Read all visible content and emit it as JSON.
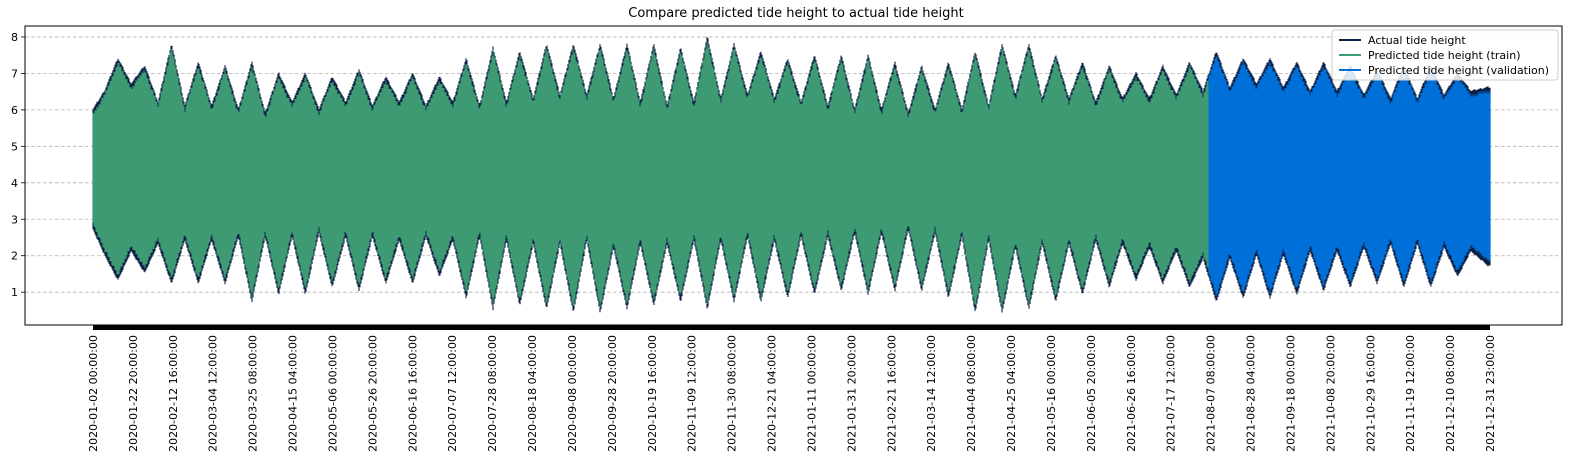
{
  "chart_data": {
    "type": "line",
    "title": "Compare predicted tide height to actual tide height",
    "xlabel": "",
    "ylabel": "",
    "x_range": [
      "2020-01-02 00:00:00",
      "2021-12-31 23:00:00"
    ],
    "split_date": "2021-08-07 08:00:00",
    "ylim": [
      0.1,
      8.3
    ],
    "y_ticks": [
      1,
      2,
      3,
      4,
      5,
      6,
      7,
      8
    ],
    "x_tick_labels": [
      "2020-01-02 00:00:00",
      "2020-01-22 20:00:00",
      "2020-02-12 16:00:00",
      "2020-03-04 12:00:00",
      "2020-03-25 08:00:00",
      "2020-04-15 04:00:00",
      "2020-05-06 00:00:00",
      "2020-05-26 20:00:00",
      "2020-06-16 16:00:00",
      "2020-07-07 12:00:00",
      "2020-07-28 08:00:00",
      "2020-08-18 04:00:00",
      "2020-09-08 00:00:00",
      "2020-09-28 20:00:00",
      "2020-10-19 16:00:00",
      "2020-11-09 12:00:00",
      "2020-11-30 08:00:00",
      "2020-12-21 04:00:00",
      "2021-01-11 00:00:00",
      "2021-01-31 20:00:00",
      "2021-02-21 16:00:00",
      "2021-03-14 12:00:00",
      "2021-04-04 08:00:00",
      "2021-04-25 04:00:00",
      "2021-05-16 00:00:00",
      "2021-06-05 20:00:00",
      "2021-06-26 16:00:00",
      "2021-07-17 12:00:00",
      "2021-08-07 08:00:00",
      "2021-08-28 04:00:00",
      "2021-09-18 00:00:00",
      "2021-10-08 20:00:00",
      "2021-10-29 16:00:00",
      "2021-11-19 12:00:00",
      "2021-12-10 08:00:00",
      "2021-12-31 23:00:00"
    ],
    "grid": "y-dashed",
    "legend_position": "top-right",
    "envelope_note_fields": [
      "date",
      "min",
      "max"
    ],
    "series": [
      {
        "name": "Actual tide height",
        "color": "#0b1f44",
        "envelope": [
          {
            "date": "2020-01-02",
            "min": 2.8,
            "max": 6.0
          },
          {
            "date": "2020-01-08",
            "min": 2.1,
            "max": 6.5
          },
          {
            "date": "2020-01-15",
            "min": 1.4,
            "max": 7.4
          },
          {
            "date": "2020-01-22",
            "min": 2.2,
            "max": 6.7
          },
          {
            "date": "2020-01-29",
            "min": 1.6,
            "max": 7.2
          },
          {
            "date": "2020-02-05",
            "min": 2.4,
            "max": 6.2
          },
          {
            "date": "2020-02-12",
            "min": 1.3,
            "max": 7.8
          },
          {
            "date": "2020-02-19",
            "min": 2.5,
            "max": 6.1
          },
          {
            "date": "2020-02-26",
            "min": 1.3,
            "max": 7.3
          },
          {
            "date": "2020-03-04",
            "min": 2.5,
            "max": 6.1
          },
          {
            "date": "2020-03-11",
            "min": 1.3,
            "max": 7.2
          },
          {
            "date": "2020-03-18",
            "min": 2.6,
            "max": 6.0
          },
          {
            "date": "2020-03-25",
            "min": 0.8,
            "max": 7.3
          },
          {
            "date": "2020-04-01",
            "min": 2.6,
            "max": 5.9
          },
          {
            "date": "2020-04-08",
            "min": 1.0,
            "max": 7.0
          },
          {
            "date": "2020-04-15",
            "min": 2.6,
            "max": 6.2
          },
          {
            "date": "2020-04-22",
            "min": 1.0,
            "max": 7.0
          },
          {
            "date": "2020-04-29",
            "min": 2.7,
            "max": 6.0
          },
          {
            "date": "2020-05-06",
            "min": 1.2,
            "max": 6.9
          },
          {
            "date": "2020-05-13",
            "min": 2.6,
            "max": 6.2
          },
          {
            "date": "2020-05-20",
            "min": 1.1,
            "max": 7.1
          },
          {
            "date": "2020-05-27",
            "min": 2.6,
            "max": 6.1
          },
          {
            "date": "2020-06-03",
            "min": 1.3,
            "max": 6.9
          },
          {
            "date": "2020-06-10",
            "min": 2.5,
            "max": 6.2
          },
          {
            "date": "2020-06-17",
            "min": 1.3,
            "max": 7.0
          },
          {
            "date": "2020-06-24",
            "min": 2.6,
            "max": 6.1
          },
          {
            "date": "2020-07-01",
            "min": 1.5,
            "max": 6.9
          },
          {
            "date": "2020-07-08",
            "min": 2.5,
            "max": 6.2
          },
          {
            "date": "2020-07-15",
            "min": 0.9,
            "max": 7.4
          },
          {
            "date": "2020-07-22",
            "min": 2.6,
            "max": 6.1
          },
          {
            "date": "2020-07-29",
            "min": 0.6,
            "max": 7.7
          },
          {
            "date": "2020-08-05",
            "min": 2.5,
            "max": 6.2
          },
          {
            "date": "2020-08-12",
            "min": 0.7,
            "max": 7.6
          },
          {
            "date": "2020-08-19",
            "min": 2.4,
            "max": 6.3
          },
          {
            "date": "2020-08-26",
            "min": 0.6,
            "max": 7.8
          },
          {
            "date": "2020-09-02",
            "min": 2.4,
            "max": 6.4
          },
          {
            "date": "2020-09-09",
            "min": 0.5,
            "max": 7.8
          },
          {
            "date": "2020-09-16",
            "min": 2.5,
            "max": 6.4
          },
          {
            "date": "2020-09-23",
            "min": 0.5,
            "max": 7.8
          },
          {
            "date": "2020-09-30",
            "min": 2.3,
            "max": 6.3
          },
          {
            "date": "2020-10-07",
            "min": 0.6,
            "max": 7.8
          },
          {
            "date": "2020-10-14",
            "min": 2.4,
            "max": 6.2
          },
          {
            "date": "2020-10-21",
            "min": 0.7,
            "max": 7.8
          },
          {
            "date": "2020-10-28",
            "min": 2.4,
            "max": 6.1
          },
          {
            "date": "2020-11-04",
            "min": 0.8,
            "max": 7.7
          },
          {
            "date": "2020-11-11",
            "min": 2.5,
            "max": 6.2
          },
          {
            "date": "2020-11-18",
            "min": 0.6,
            "max": 8.0
          },
          {
            "date": "2020-11-25",
            "min": 2.5,
            "max": 6.3
          },
          {
            "date": "2020-12-02",
            "min": 0.8,
            "max": 7.8
          },
          {
            "date": "2020-12-09",
            "min": 2.6,
            "max": 6.4
          },
          {
            "date": "2020-12-16",
            "min": 0.8,
            "max": 7.6
          },
          {
            "date": "2020-12-23",
            "min": 2.5,
            "max": 6.3
          },
          {
            "date": "2020-12-30",
            "min": 0.9,
            "max": 7.4
          },
          {
            "date": "2021-01-06",
            "min": 2.6,
            "max": 6.2
          },
          {
            "date": "2021-01-13",
            "min": 1.0,
            "max": 7.5
          },
          {
            "date": "2021-01-20",
            "min": 2.6,
            "max": 6.1
          },
          {
            "date": "2021-01-27",
            "min": 1.1,
            "max": 7.5
          },
          {
            "date": "2021-02-03",
            "min": 2.7,
            "max": 6.0
          },
          {
            "date": "2021-02-10",
            "min": 1.0,
            "max": 7.5
          },
          {
            "date": "2021-02-17",
            "min": 2.7,
            "max": 6.0
          },
          {
            "date": "2021-02-24",
            "min": 1.1,
            "max": 7.3
          },
          {
            "date": "2021-03-03",
            "min": 2.8,
            "max": 5.9
          },
          {
            "date": "2021-03-10",
            "min": 1.1,
            "max": 7.2
          },
          {
            "date": "2021-03-17",
            "min": 2.7,
            "max": 6.0
          },
          {
            "date": "2021-03-24",
            "min": 0.9,
            "max": 7.3
          },
          {
            "date": "2021-03-31",
            "min": 2.6,
            "max": 6.0
          },
          {
            "date": "2021-04-07",
            "min": 0.5,
            "max": 7.6
          },
          {
            "date": "2021-04-14",
            "min": 2.5,
            "max": 6.1
          },
          {
            "date": "2021-04-21",
            "min": 0.5,
            "max": 7.8
          },
          {
            "date": "2021-04-28",
            "min": 2.3,
            "max": 6.4
          },
          {
            "date": "2021-05-05",
            "min": 0.6,
            "max": 7.8
          },
          {
            "date": "2021-05-12",
            "min": 2.4,
            "max": 6.3
          },
          {
            "date": "2021-05-19",
            "min": 0.8,
            "max": 7.5
          },
          {
            "date": "2021-05-26",
            "min": 2.4,
            "max": 6.3
          },
          {
            "date": "2021-06-02",
            "min": 1.0,
            "max": 7.3
          },
          {
            "date": "2021-06-09",
            "min": 2.5,
            "max": 6.2
          },
          {
            "date": "2021-06-16",
            "min": 1.2,
            "max": 7.2
          },
          {
            "date": "2021-06-23",
            "min": 2.4,
            "max": 6.3
          },
          {
            "date": "2021-06-30",
            "min": 1.4,
            "max": 7.0
          },
          {
            "date": "2021-07-07",
            "min": 2.3,
            "max": 6.3
          },
          {
            "date": "2021-07-14",
            "min": 1.3,
            "max": 7.2
          },
          {
            "date": "2021-07-21",
            "min": 2.2,
            "max": 6.4
          },
          {
            "date": "2021-07-28",
            "min": 1.2,
            "max": 7.3
          },
          {
            "date": "2021-08-04",
            "min": 2.0,
            "max": 6.5
          },
          {
            "date": "2021-08-11",
            "min": 0.8,
            "max": 7.6
          },
          {
            "date": "2021-08-18",
            "min": 2.0,
            "max": 6.6
          },
          {
            "date": "2021-08-25",
            "min": 0.9,
            "max": 7.4
          },
          {
            "date": "2021-09-01",
            "min": 2.1,
            "max": 6.7
          },
          {
            "date": "2021-09-08",
            "min": 0.9,
            "max": 7.4
          },
          {
            "date": "2021-09-15",
            "min": 2.1,
            "max": 6.6
          },
          {
            "date": "2021-09-22",
            "min": 1.0,
            "max": 7.3
          },
          {
            "date": "2021-09-29",
            "min": 2.2,
            "max": 6.5
          },
          {
            "date": "2021-10-06",
            "min": 1.1,
            "max": 7.3
          },
          {
            "date": "2021-10-13",
            "min": 2.2,
            "max": 6.5
          },
          {
            "date": "2021-10-20",
            "min": 1.2,
            "max": 7.2
          },
          {
            "date": "2021-10-27",
            "min": 2.3,
            "max": 6.4
          },
          {
            "date": "2021-11-03",
            "min": 1.3,
            "max": 7.1
          },
          {
            "date": "2021-11-10",
            "min": 2.4,
            "max": 6.3
          },
          {
            "date": "2021-11-17",
            "min": 1.2,
            "max": 7.2
          },
          {
            "date": "2021-11-24",
            "min": 2.4,
            "max": 6.3
          },
          {
            "date": "2021-12-01",
            "min": 1.2,
            "max": 7.2
          },
          {
            "date": "2021-12-08",
            "min": 2.3,
            "max": 6.4
          },
          {
            "date": "2021-12-15",
            "min": 1.5,
            "max": 7.0
          },
          {
            "date": "2021-12-22",
            "min": 2.2,
            "max": 6.5
          },
          {
            "date": "2021-12-31",
            "min": 1.8,
            "max": 6.6
          }
        ]
      },
      {
        "name": "Predicted tide height (train)",
        "color": "#3e9a72",
        "x_range": [
          "2020-01-02 00:00:00",
          "2021-08-07 08:00:00"
        ]
      },
      {
        "name": "Predicted tide height (validation)",
        "color": "#0070d8",
        "x_range": [
          "2021-08-07 08:00:00",
          "2021-12-31 23:00:00"
        ]
      }
    ]
  }
}
